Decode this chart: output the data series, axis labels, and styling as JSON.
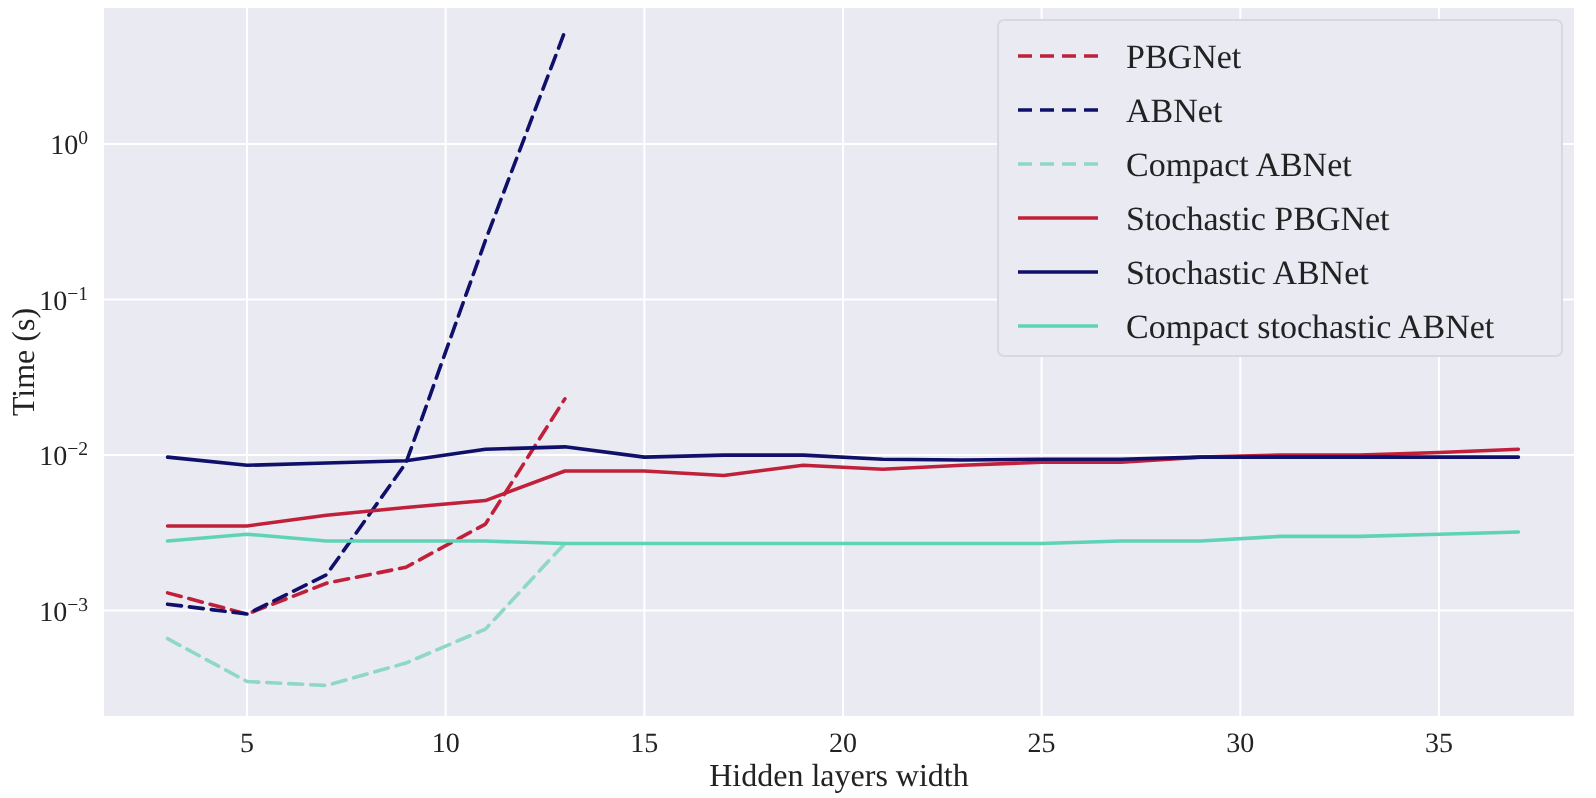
{
  "chart_data": {
    "type": "line",
    "xlabel": "Hidden layers width",
    "ylabel": "Time (s)",
    "log": "y",
    "grid": true,
    "legend": "top right",
    "xlim": [
      1.4,
      38.4
    ],
    "ylim": [
      0.00021,
      7.5
    ],
    "xticks": [
      5,
      10,
      15,
      20,
      25,
      30,
      35
    ],
    "yticks": [
      {
        "value": 0.001,
        "label": "10$^{−3}$"
      },
      {
        "value": 0.01,
        "label": "10$^{−2}$"
      },
      {
        "value": 0.1,
        "label": "10$^{−1}$"
      },
      {
        "value": 1,
        "label": "10$^{0}$"
      }
    ],
    "series": [
      {
        "name": "PBGNet",
        "color": "#c0203a",
        "line_style": "dashed",
        "x": [
          3,
          5,
          7,
          9,
          11,
          13
        ],
        "values": [
          0.0013,
          0.00095,
          0.0015,
          0.0019,
          0.0036,
          0.023
        ]
      },
      {
        "name": "ABNet",
        "color": "#10106a",
        "line_style": "dashed",
        "x": [
          3,
          5,
          7,
          9,
          11,
          13
        ],
        "values": [
          0.0011,
          0.00095,
          0.0017,
          0.0089,
          0.24,
          5.3
        ]
      },
      {
        "name": "Compact ABNet",
        "color": "#8fd8c4",
        "line_style": "dashed",
        "x": [
          3,
          5,
          7,
          9,
          11,
          13
        ],
        "values": [
          0.00066,
          0.00035,
          0.00033,
          0.00046,
          0.00076,
          0.0027
        ]
      },
      {
        "name": "Stochastic PBGNet",
        "color": "#c0203a",
        "line_style": "solid",
        "x": [
          3,
          5,
          7,
          9,
          11,
          13,
          15,
          17,
          19,
          21,
          23,
          25,
          27,
          29,
          31,
          33,
          35,
          37
        ],
        "values": [
          0.0035,
          0.0035,
          0.0041,
          0.0046,
          0.0051,
          0.0079,
          0.0079,
          0.0074,
          0.0086,
          0.0081,
          0.0086,
          0.009,
          0.009,
          0.0097,
          0.01,
          0.01,
          0.0104,
          0.0109
        ]
      },
      {
        "name": "Stochastic ABNet",
        "color": "#10106a",
        "line_style": "solid",
        "x": [
          3,
          5,
          7,
          9,
          11,
          13,
          15,
          17,
          19,
          21,
          23,
          25,
          27,
          29,
          31,
          33,
          35,
          37
        ],
        "values": [
          0.0097,
          0.0086,
          0.0089,
          0.0092,
          0.0109,
          0.0113,
          0.0097,
          0.01,
          0.01,
          0.0094,
          0.0093,
          0.0094,
          0.0094,
          0.0097,
          0.0097,
          0.0097,
          0.0097,
          0.0097
        ]
      },
      {
        "name": "Compact stochastic ABNet",
        "color": "#5fd3b8",
        "line_style": "solid",
        "x": [
          3,
          5,
          7,
          9,
          11,
          13,
          15,
          17,
          19,
          21,
          23,
          25,
          27,
          29,
          31,
          33,
          35,
          37
        ],
        "values": [
          0.0028,
          0.0031,
          0.0028,
          0.0028,
          0.0028,
          0.0027,
          0.0027,
          0.0027,
          0.0027,
          0.0027,
          0.0027,
          0.0027,
          0.0028,
          0.0028,
          0.003,
          0.003,
          0.0031,
          0.0032
        ]
      }
    ]
  }
}
